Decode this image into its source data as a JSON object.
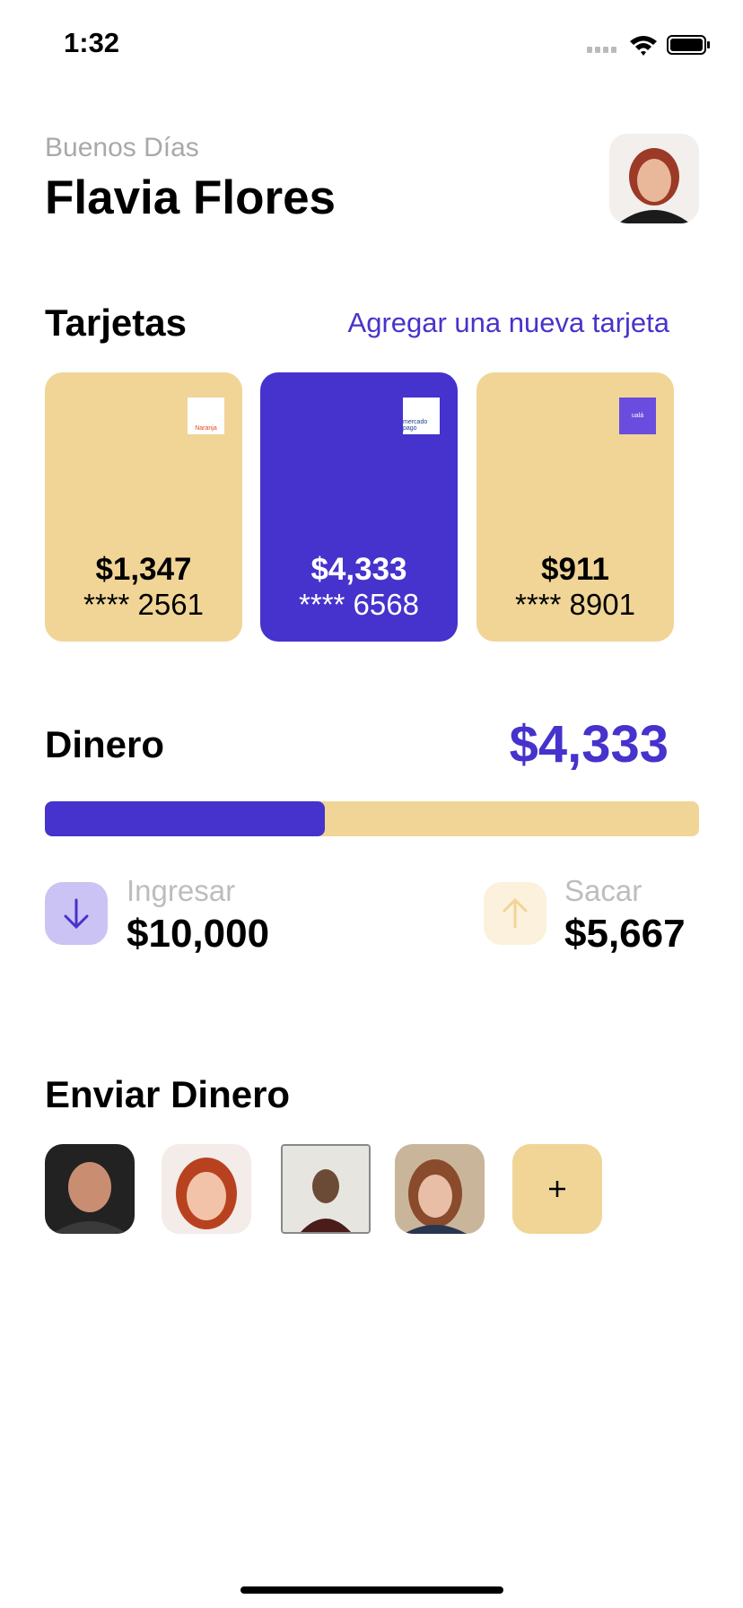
{
  "status": {
    "time": "1:32"
  },
  "header": {
    "greeting": "Buenos Días",
    "name": "Flavia Flores"
  },
  "cards": {
    "title": "Tarjetas",
    "add_link": "Agregar una nueva tarjeta",
    "items": [
      {
        "brand": "Naranja",
        "amount": "$1,347",
        "number": "**** 2561"
      },
      {
        "brand": "mercado pago",
        "amount": "$4,333",
        "number": "**** 6568"
      },
      {
        "brand": "ualá",
        "amount": "$911",
        "number": "**** 8901"
      }
    ]
  },
  "money": {
    "title": "Dinero",
    "amount": "$4,333",
    "deposit": {
      "label": "Ingresar",
      "amount": "$10,000"
    },
    "withdraw": {
      "label": "Sacar",
      "amount": "$5,667"
    }
  },
  "send": {
    "title": "Enviar Dinero"
  }
}
